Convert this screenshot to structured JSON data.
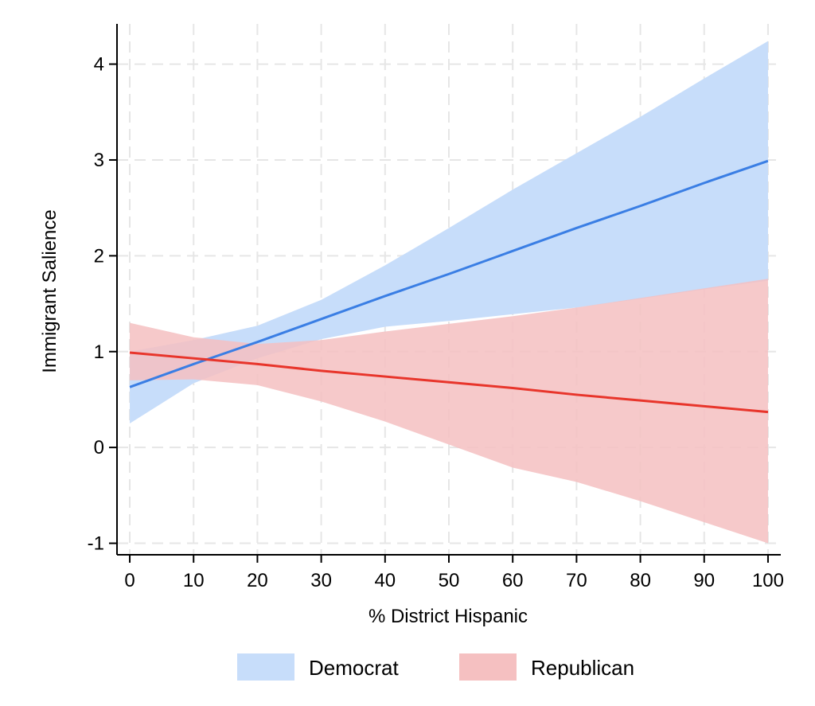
{
  "chart_data": {
    "type": "line",
    "title": "",
    "xlabel": "% District Hispanic",
    "ylabel": "Immigrant Salience",
    "xlim": [
      -2,
      102
    ],
    "ylim": [
      -1.12,
      4.42
    ],
    "xticks": [
      0,
      10,
      20,
      30,
      40,
      50,
      60,
      70,
      80,
      90,
      100
    ],
    "yticks": [
      -1,
      0,
      1,
      2,
      3,
      4
    ],
    "grid": true,
    "legend": "bottom",
    "series": [
      {
        "name": "Democrat",
        "line_color": "#3a7ee4",
        "band_color": "#c7ddfa",
        "x": [
          0,
          10,
          20,
          30,
          40,
          50,
          60,
          70,
          80,
          90,
          100
        ],
        "y": [
          0.63,
          0.87,
          1.1,
          1.34,
          1.58,
          1.81,
          2.05,
          2.29,
          2.52,
          2.76,
          2.99
        ],
        "lower": [
          0.25,
          0.67,
          0.93,
          1.13,
          1.26,
          1.32,
          1.39,
          1.46,
          1.55,
          1.65,
          1.74
        ],
        "upper": [
          1.0,
          1.12,
          1.27,
          1.54,
          1.9,
          2.29,
          2.69,
          3.07,
          3.45,
          3.85,
          4.24
        ]
      },
      {
        "name": "Republican",
        "line_color": "#e8352b",
        "band_color": "#f5c0c1",
        "x": [
          0,
          10,
          20,
          30,
          40,
          50,
          60,
          70,
          80,
          90,
          100
        ],
        "y": [
          0.99,
          0.93,
          0.87,
          0.8,
          0.74,
          0.68,
          0.62,
          0.55,
          0.49,
          0.43,
          0.37
        ],
        "lower": [
          0.7,
          0.71,
          0.65,
          0.48,
          0.27,
          0.03,
          -0.21,
          -0.36,
          -0.56,
          -0.78,
          -1.0
        ],
        "upper": [
          1.3,
          1.15,
          1.08,
          1.12,
          1.21,
          1.29,
          1.37,
          1.46,
          1.56,
          1.66,
          1.76
        ]
      }
    ]
  }
}
